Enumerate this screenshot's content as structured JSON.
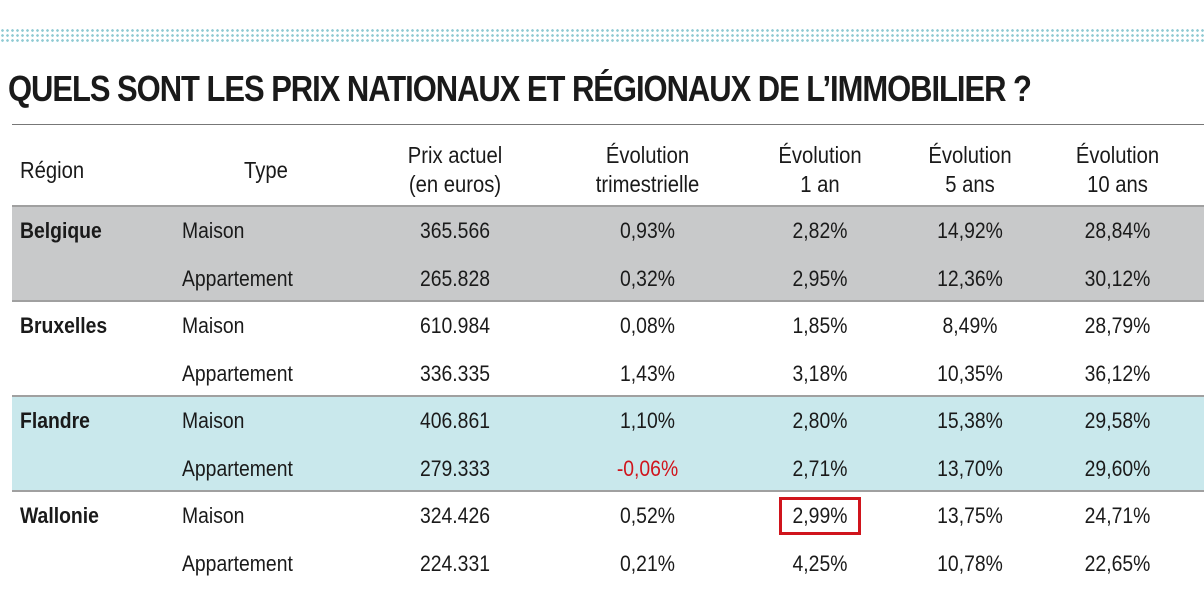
{
  "title": "QUELS SONT LES PRIX NATIONAUX ET RÉGIONAUX DE L’IMMOBILIER ?",
  "colors": {
    "gray_band": "#c8c9ca",
    "blue_band": "#c9e8ec",
    "negative": "#d0141c",
    "highlight": "#d0141c"
  },
  "chart_data": {
    "type": "table",
    "columns": [
      {
        "line1": "Région",
        "line2": ""
      },
      {
        "line1": "Type",
        "line2": ""
      },
      {
        "line1": "Prix actuel",
        "line2": "(en euros)"
      },
      {
        "line1": "Évolution",
        "line2": "trimestrielle"
      },
      {
        "line1": "Évolution",
        "line2": "1 an"
      },
      {
        "line1": "Évolution",
        "line2": "5 ans"
      },
      {
        "line1": "Évolution",
        "line2": "10 ans"
      }
    ],
    "rows": [
      {
        "region": "Belgique",
        "type": "Maison",
        "prix": "365.566",
        "trim": "0,93%",
        "an1": "2,82%",
        "an5": "14,92%",
        "an10": "28,84%"
      },
      {
        "region": "",
        "type": "Appartement",
        "prix": "265.828",
        "trim": "0,32%",
        "an1": "2,95%",
        "an5": "12,36%",
        "an10": "30,12%"
      },
      {
        "region": "Bruxelles",
        "type": "Maison",
        "prix": "610.984",
        "trim": "0,08%",
        "an1": "1,85%",
        "an5": "8,49%",
        "an10": "28,79%"
      },
      {
        "region": "",
        "type": "Appartement",
        "prix": "336.335",
        "trim": "1,43%",
        "an1": "3,18%",
        "an5": "10,35%",
        "an10": "36,12%"
      },
      {
        "region": "Flandre",
        "type": "Maison",
        "prix": "406.861",
        "trim": "1,10%",
        "an1": "2,80%",
        "an5": "15,38%",
        "an10": "29,58%"
      },
      {
        "region": "",
        "type": "Appartement",
        "prix": "279.333",
        "trim": "-0,06%",
        "an1": "2,71%",
        "an5": "13,70%",
        "an10": "29,60%"
      },
      {
        "region": "Wallonie",
        "type": "Maison",
        "prix": "324.426",
        "trim": "0,52%",
        "an1": "2,99%",
        "an5": "13,75%",
        "an10": "24,71%"
      },
      {
        "region": "",
        "type": "Appartement",
        "prix": "224.331",
        "trim": "0,21%",
        "an1": "4,25%",
        "an5": "10,78%",
        "an10": "22,65%"
      }
    ],
    "negative_cell": {
      "row": 5,
      "column": "trim"
    },
    "highlighted_cell": {
      "row": 6,
      "column": "an1"
    },
    "bands": [
      {
        "rows": [
          0,
          1
        ],
        "color": "gray"
      },
      {
        "rows": [
          2,
          3
        ],
        "color": "none"
      },
      {
        "rows": [
          4,
          5
        ],
        "color": "blue"
      },
      {
        "rows": [
          6,
          7
        ],
        "color": "none"
      }
    ]
  }
}
